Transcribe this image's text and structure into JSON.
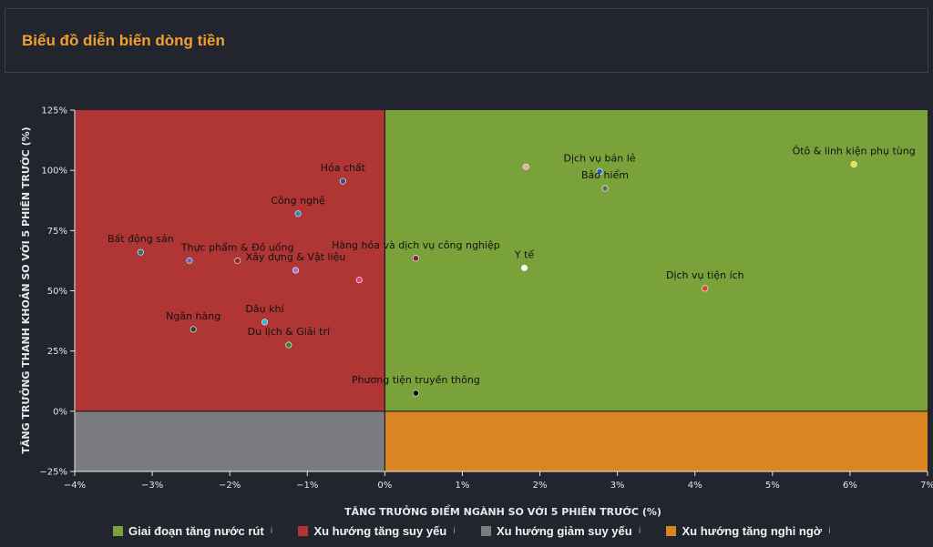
{
  "header": {
    "title": "Biểu đồ diễn biến dòng tiền"
  },
  "chart_data": {
    "type": "scatter",
    "xlabel": "TĂNG TRƯỞNG ĐIỂM NGÀNH SO VỚI 5 PHIÊN TRƯỚC (%)",
    "ylabel": "TĂNG TRƯỞNG THANH KHOẢN SO VỚI 5 PHIÊN TRƯỚC (%)",
    "xlim": [
      -4,
      7
    ],
    "ylim": [
      -25,
      125
    ],
    "xticks": [
      -4,
      -3,
      -2,
      -1,
      0,
      1,
      2,
      3,
      4,
      5,
      6,
      7
    ],
    "xtick_labels": [
      "−4%",
      "−3%",
      "−2%",
      "−1%",
      "0%",
      "1%",
      "2%",
      "3%",
      "4%",
      "5%",
      "6%",
      "7%"
    ],
    "yticks": [
      -25,
      0,
      25,
      50,
      75,
      100,
      125
    ],
    "ytick_labels": [
      "−25%",
      "0%",
      "25%",
      "50%",
      "75%",
      "100%",
      "125%"
    ],
    "quadrants": [
      {
        "name": "Giai đoạn tăng nước rút",
        "color": "#7aa23a",
        "x": [
          0,
          7
        ],
        "y": [
          0,
          125
        ]
      },
      {
        "name": "Xu hướng tăng suy yếu",
        "color": "#b03535",
        "x": [
          -4,
          0
        ],
        "y": [
          0,
          125
        ]
      },
      {
        "name": "Xu hướng giảm suy yếu",
        "color": "#7b7c80",
        "x": [
          -4,
          0
        ],
        "y": [
          -25,
          0
        ]
      },
      {
        "name": "Xu hướng tăng nghi ngờ",
        "color": "#d98522",
        "x": [
          0,
          7
        ],
        "y": [
          -25,
          0
        ]
      }
    ],
    "points": [
      {
        "label": "Bất động sản",
        "x": -3.15,
        "y": 66,
        "color": "#1f7a70"
      },
      {
        "label": "Thực phẩm & Đồ uống",
        "x": -1.9,
        "y": 62.5,
        "color": "#8a2a2a"
      },
      {
        "label": "",
        "x": -2.52,
        "y": 62.5,
        "color": "#5a6cc8"
      },
      {
        "label": "Hóa chất",
        "x": -0.54,
        "y": 95.5,
        "color": "#3a4e86"
      },
      {
        "label": "Công nghệ",
        "x": -1.12,
        "y": 82,
        "color": "#2e8ab8"
      },
      {
        "label": "Xây dựng & Vật liệu",
        "x": -1.15,
        "y": 58.5,
        "color": "#9a72d8"
      },
      {
        "label": "",
        "x": -0.33,
        "y": 54.5,
        "color": "#e0407a"
      },
      {
        "label": "Hàng hóa và dịch vụ công nghiệp",
        "x": 0.4,
        "y": 63.5,
        "color": "#8a1a3a"
      },
      {
        "label": "Dầu khí",
        "x": -1.55,
        "y": 37,
        "color": "#22b8e0"
      },
      {
        "label": "Du lịch & Giải trí",
        "x": -1.24,
        "y": 27.5,
        "color": "#2a8a2a"
      },
      {
        "label": "Ngân hàng",
        "x": -2.47,
        "y": 34,
        "color": "#1e4a36"
      },
      {
        "label": "Phương tiện truyền thông",
        "x": 0.4,
        "y": 7.5,
        "color": "#000000"
      },
      {
        "label": "Dịch vụ bán lẻ",
        "x": 2.77,
        "y": 99.5,
        "color": "#2e5ac8"
      },
      {
        "label": "",
        "x": 1.82,
        "y": 101.5,
        "color": "#f0a0b0"
      },
      {
        "label": "Bảo hiểm",
        "x": 2.84,
        "y": 92.5,
        "color": "#6a6a5a"
      },
      {
        "label": "Y tế",
        "x": 1.8,
        "y": 59.5,
        "color": "#ffffff"
      },
      {
        "label": "Ôtô & linh kiện phụ tùng",
        "x": 6.05,
        "y": 102.5,
        "color": "#f0e020"
      },
      {
        "label": "Dịch vụ tiện ích",
        "x": 4.13,
        "y": 51,
        "color": "#e03a3a"
      }
    ]
  },
  "legend": {
    "items": [
      {
        "label": "Giai đoạn tăng nước rút",
        "color": "#7aa23a",
        "icon": "info-icon"
      },
      {
        "label": "Xu hướng tăng suy yếu",
        "color": "#b03535",
        "icon": "info-icon"
      },
      {
        "label": "Xu hướng giảm suy yếu",
        "color": "#7b7c80",
        "icon": "info-icon"
      },
      {
        "label": "Xu hướng tăng nghi ngờ",
        "color": "#d98522",
        "icon": "info-icon"
      }
    ]
  }
}
